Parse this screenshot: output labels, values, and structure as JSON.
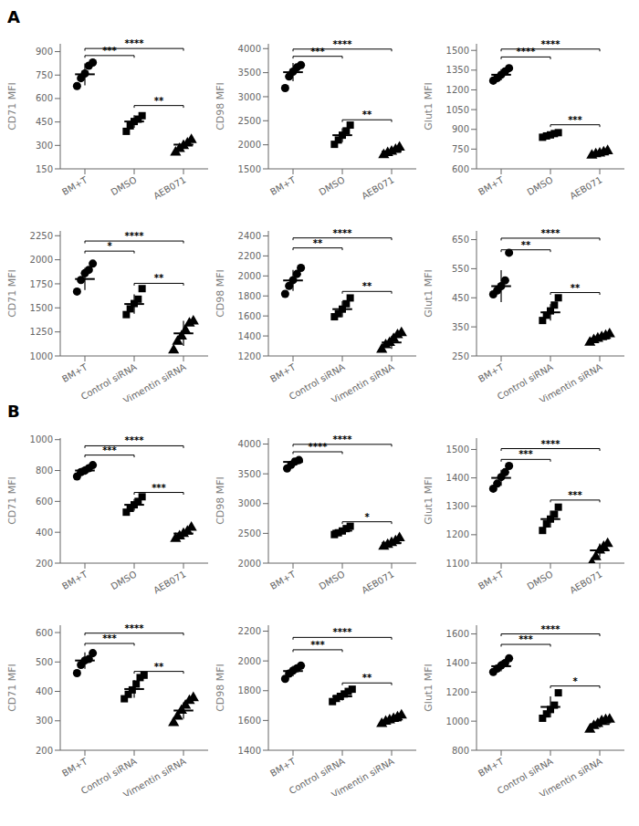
{
  "chart_data": [
    {
      "panel": "A",
      "type": "scatter",
      "ylabel": "CD71 MFI",
      "categories": [
        "BM+T",
        "DMSO",
        "AEB071"
      ],
      "ylim": [
        150,
        950
      ],
      "yticks": [
        150,
        300,
        450,
        600,
        750,
        900
      ],
      "color": "black",
      "markers": [
        "circle",
        "square",
        "triangle"
      ],
      "means": [
        755,
        453,
        305
      ],
      "sds": [
        70,
        40,
        28
      ],
      "points": [
        [
          680,
          730,
          760,
          810,
          830
        ],
        [
          390,
          425,
          453,
          468,
          490
        ],
        [
          255,
          278,
          298,
          313,
          335
        ]
      ],
      "sig_lines": [
        {
          "x1": 0,
          "x2": 1,
          "y": 875,
          "text": "***"
        },
        {
          "x1": 0,
          "x2": 2,
          "y": 920,
          "text": "****"
        },
        {
          "x1": 1,
          "x2": 2,
          "y": 555,
          "text": "**"
        }
      ]
    },
    {
      "type": "scatter",
      "ylabel": "CD98 MFI",
      "categories": [
        "BM+T",
        "DMSO",
        "AEB071"
      ],
      "ylim": [
        1500,
        4100
      ],
      "yticks": [
        1500,
        2000,
        2500,
        3000,
        3500,
        4000
      ],
      "color": "black",
      "markers": [
        "circle",
        "square",
        "triangle"
      ],
      "means": [
        3510,
        2200,
        1860
      ],
      "sds": [
        190,
        145,
        65
      ],
      "points": [
        [
          3180,
          3420,
          3520,
          3610,
          3660
        ],
        [
          2010,
          2100,
          2200,
          2290,
          2410
        ],
        [
          1790,
          1830,
          1860,
          1900,
          1945
        ]
      ],
      "sig_lines": [
        {
          "x1": 0,
          "x2": 1,
          "y": 3840,
          "text": "***"
        },
        {
          "x1": 0,
          "x2": 2,
          "y": 3990,
          "text": "****"
        },
        {
          "x1": 1,
          "x2": 2,
          "y": 2520,
          "text": "**"
        }
      ]
    },
    {
      "type": "scatter",
      "ylabel": "Glut1 MFI",
      "categories": [
        "BM+T",
        "DMSO",
        "AEB071"
      ],
      "ylim": [
        600,
        1550
      ],
      "yticks": [
        600,
        750,
        900,
        1050,
        1200,
        1350,
        1500
      ],
      "color": "black",
      "markers": [
        "circle",
        "square",
        "triangle"
      ],
      "means": [
        1315,
        858,
        718
      ],
      "sds": [
        42,
        15,
        15
      ],
      "points": [
        [
          1270,
          1290,
          1315,
          1340,
          1365
        ],
        [
          840,
          850,
          858,
          868,
          875
        ],
        [
          703,
          712,
          718,
          726,
          736
        ]
      ],
      "sig_lines": [
        {
          "x1": 0,
          "x2": 1,
          "y": 1450,
          "text": "****"
        },
        {
          "x1": 0,
          "x2": 2,
          "y": 1510,
          "text": "****"
        },
        {
          "x1": 1,
          "x2": 2,
          "y": 935,
          "text": "***"
        }
      ]
    },
    {
      "type": "scatter",
      "ylabel": "CD71 MFI",
      "categories": [
        "BM+T",
        "Control siRNA",
        "Vimentin siRNA"
      ],
      "ylim": [
        1000,
        2300
      ],
      "yticks": [
        1000,
        1250,
        1500,
        1750,
        2000,
        2250
      ],
      "color": "black",
      "markers": [
        "circle",
        "square",
        "triangle"
      ],
      "means": [
        1800,
        1540,
        1235
      ],
      "sds": [
        115,
        100,
        130
      ],
      "points": [
        [
          1670,
          1790,
          1860,
          1895,
          1960
        ],
        [
          1430,
          1490,
          1545,
          1590,
          1700
        ],
        [
          1060,
          1150,
          1205,
          1265,
          1340,
          1360
        ]
      ],
      "sig_lines": [
        {
          "x1": 0,
          "x2": 1,
          "y": 2090,
          "text": "*"
        },
        {
          "x1": 0,
          "x2": 2,
          "y": 2195,
          "text": "****"
        },
        {
          "x1": 1,
          "x2": 2,
          "y": 1755,
          "text": "**"
        }
      ]
    },
    {
      "type": "scatter",
      "ylabel": "CD98 MFI",
      "categories": [
        "BM+T",
        "Control siRNA",
        "Vimentin siRNA"
      ],
      "ylim": [
        1200,
        2450
      ],
      "yticks": [
        1200,
        1400,
        1600,
        1800,
        2000,
        2200,
        2400
      ],
      "color": "black",
      "markers": [
        "circle",
        "square",
        "triangle"
      ],
      "means": [
        1955,
        1668,
        1335
      ],
      "sds": [
        105,
        80,
        65
      ],
      "points": [
        [
          1820,
          1900,
          1958,
          2020,
          2080
        ],
        [
          1592,
          1622,
          1668,
          1722,
          1780
        ],
        [
          1265,
          1310,
          1333,
          1372,
          1410,
          1430
        ]
      ],
      "sig_lines": [
        {
          "x1": 0,
          "x2": 1,
          "y": 2280,
          "text": "**"
        },
        {
          "x1": 0,
          "x2": 2,
          "y": 2380,
          "text": "****"
        },
        {
          "x1": 1,
          "x2": 2,
          "y": 1845,
          "text": "**"
        }
      ]
    },
    {
      "type": "scatter",
      "ylabel": "Glut1 MFI",
      "categories": [
        "BM+T",
        "Control siRNA",
        "Vimentin siRNA"
      ],
      "ylim": [
        250,
        680
      ],
      "yticks": [
        250,
        350,
        450,
        550,
        650
      ],
      "color": "black",
      "markers": [
        "circle",
        "square",
        "triangle"
      ],
      "means": [
        490,
        400,
        310
      ],
      "sds": [
        55,
        28,
        10
      ],
      "points": [
        [
          462,
          475,
          490,
          510,
          605
        ],
        [
          372,
          390,
          405,
          425,
          450
        ],
        [
          296,
          305,
          310,
          315,
          320,
          325
        ]
      ],
      "sig_lines": [
        {
          "x1": 0,
          "x2": 1,
          "y": 615,
          "text": "**"
        },
        {
          "x1": 0,
          "x2": 2,
          "y": 655,
          "text": "****"
        },
        {
          "x1": 1,
          "x2": 2,
          "y": 468,
          "text": "**"
        }
      ]
    },
    {
      "panel": "B",
      "type": "scatter",
      "ylabel": "CD71 MFI",
      "categories": [
        "BM+T",
        "DMSO",
        "AEB071"
      ],
      "ylim": [
        200,
        1010
      ],
      "yticks": [
        200,
        400,
        600,
        800,
        1000
      ],
      "color": "black",
      "markers": [
        "circle",
        "square",
        "triangle"
      ],
      "means": [
        800,
        578,
        392
      ],
      "sds": [
        28,
        38,
        25
      ],
      "points": [
        [
          762,
          790,
          800,
          815,
          835
        ],
        [
          530,
          555,
          578,
          600,
          630
        ],
        [
          358,
          375,
          390,
          405,
          430
        ]
      ],
      "sig_lines": [
        {
          "x1": 0,
          "x2": 1,
          "y": 900,
          "text": "***"
        },
        {
          "x1": 0,
          "x2": 2,
          "y": 960,
          "text": "****"
        },
        {
          "x1": 1,
          "x2": 2,
          "y": 658,
          "text": "***"
        }
      ]
    },
    {
      "type": "scatter",
      "ylabel": "CD98 MFI",
      "categories": [
        "BM+T",
        "DMSO",
        "AEB071"
      ],
      "ylim": [
        2000,
        4100
      ],
      "yticks": [
        2000,
        2500,
        3000,
        3500,
        4000
      ],
      "color": "black",
      "markers": [
        "circle",
        "square",
        "triangle"
      ],
      "means": [
        3700,
        2545,
        2340
      ],
      "sds": [
        65,
        52,
        52
      ],
      "points": [
        [
          3590,
          3650,
          3705,
          3730
        ],
        [
          2480,
          2510,
          2540,
          2580,
          2620
        ],
        [
          2280,
          2310,
          2340,
          2372,
          2420
        ]
      ],
      "sig_lines": [
        {
          "x1": 0,
          "x2": 1,
          "y": 3870,
          "text": "****"
        },
        {
          "x1": 0,
          "x2": 2,
          "y": 3995,
          "text": "****"
        },
        {
          "x1": 1,
          "x2": 2,
          "y": 2695,
          "text": "*"
        }
      ]
    },
    {
      "type": "scatter",
      "ylabel": "Glut1 MFI",
      "categories": [
        "BM+T",
        "DMSO",
        "AEB071"
      ],
      "ylim": [
        1100,
        1540
      ],
      "yticks": [
        1100,
        1200,
        1300,
        1400,
        1500
      ],
      "color": "black",
      "markers": [
        "circle",
        "square",
        "triangle"
      ],
      "means": [
        1400,
        1255,
        1145
      ],
      "sds": [
        28,
        30,
        24
      ],
      "points": [
        [
          1362,
          1380,
          1403,
          1420,
          1442
        ],
        [
          1215,
          1238,
          1255,
          1272,
          1297
        ],
        [
          1100,
          1122,
          1145,
          1158,
          1168
        ]
      ],
      "sig_lines": [
        {
          "x1": 0,
          "x2": 1,
          "y": 1465,
          "text": "***"
        },
        {
          "x1": 0,
          "x2": 2,
          "y": 1503,
          "text": "****"
        },
        {
          "x1": 1,
          "x2": 2,
          "y": 1322,
          "text": "***"
        }
      ]
    },
    {
      "type": "scatter",
      "ylabel": "CD71 MFI",
      "categories": [
        "BM+T",
        "Control siRNA",
        "Vimentin siRNA"
      ],
      "ylim": [
        200,
        625
      ],
      "yticks": [
        200,
        300,
        400,
        500,
        600
      ],
      "color": "black",
      "markers": [
        "circle",
        "square",
        "triangle"
      ],
      "means": [
        505,
        408,
        335
      ],
      "sds": [
        28,
        30,
        28
      ],
      "points": [
        [
          462,
          490,
          505,
          510,
          530
        ],
        [
          375,
          390,
          405,
          425,
          447,
          455
        ],
        [
          293,
          315,
          335,
          352,
          368,
          378
        ]
      ],
      "sig_lines": [
        {
          "x1": 0,
          "x2": 1,
          "y": 563,
          "text": "***"
        },
        {
          "x1": 0,
          "x2": 2,
          "y": 598,
          "text": "****"
        },
        {
          "x1": 1,
          "x2": 2,
          "y": 468,
          "text": "**"
        }
      ]
    },
    {
      "type": "scatter",
      "ylabel": "CD98 MFI",
      "categories": [
        "BM+T",
        "Control siRNA",
        "Vimentin siRNA"
      ],
      "ylim": [
        1400,
        2240
      ],
      "yticks": [
        1400,
        1600,
        1800,
        2000,
        2200
      ],
      "color": "black",
      "markers": [
        "circle",
        "square",
        "triangle"
      ],
      "means": [
        1932,
        1762,
        1600
      ],
      "sds": [
        35,
        28,
        18
      ],
      "points": [
        [
          1880,
          1915,
          1935,
          1950,
          1968
        ],
        [
          1727,
          1748,
          1762,
          1778,
          1795,
          1810
        ],
        [
          1578,
          1593,
          1602,
          1612,
          1622,
          1635
        ]
      ],
      "sig_lines": [
        {
          "x1": 0,
          "x2": 1,
          "y": 2075,
          "text": "***"
        },
        {
          "x1": 0,
          "x2": 2,
          "y": 2158,
          "text": "****"
        },
        {
          "x1": 1,
          "x2": 2,
          "y": 1852,
          "text": "**"
        }
      ]
    },
    {
      "type": "scatter",
      "ylabel": "Glut1 MFI",
      "categories": [
        "BM+T",
        "Control siRNA",
        "Vimentin siRNA"
      ],
      "ylim": [
        800,
        1660
      ],
      "yticks": [
        800,
        1000,
        1200,
        1400,
        1600
      ],
      "color": "black",
      "markers": [
        "circle",
        "square",
        "triangle"
      ],
      "means": [
        1378,
        1098,
        980
      ],
      "sds": [
        35,
        72,
        25
      ],
      "points": [
        [
          1338,
          1362,
          1383,
          1400,
          1432
        ],
        [
          1020,
          1050,
          1080,
          1110,
          1195
        ],
        [
          943,
          968,
          982,
          1000,
          1008,
          1012
        ]
      ],
      "sig_lines": [
        {
          "x1": 0,
          "x2": 1,
          "y": 1528,
          "text": "***"
        },
        {
          "x1": 0,
          "x2": 2,
          "y": 1600,
          "text": "****"
        },
        {
          "x1": 1,
          "x2": 2,
          "y": 1242,
          "text": "*"
        }
      ]
    }
  ]
}
